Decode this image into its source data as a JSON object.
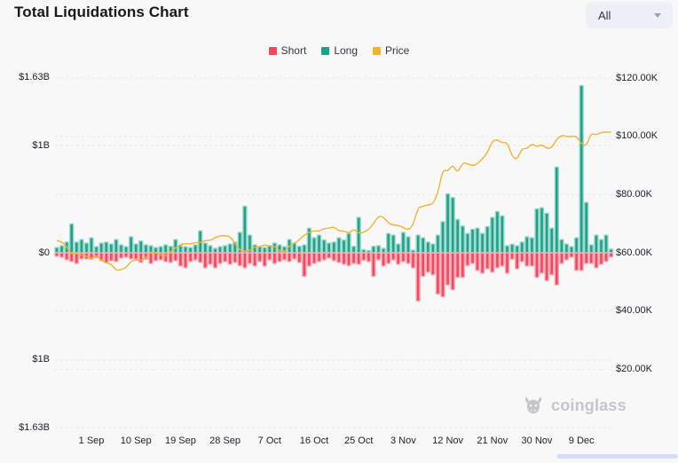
{
  "header": {
    "title": "Total Liquidations Chart"
  },
  "range_selector": {
    "value": "All"
  },
  "legend": {
    "items": [
      {
        "label": "Short",
        "color": "#f4495d"
      },
      {
        "label": "Long",
        "color": "#1aa48b"
      },
      {
        "label": "Price",
        "color": "#f0b432"
      }
    ]
  },
  "watermark": {
    "text": "coinglass"
  },
  "chart_data": {
    "type": "bar",
    "subtype": "combo-bar-line",
    "title": "Total Liquidations Chart",
    "grid": "dashed-horizontal",
    "legend_position": "top-center",
    "x": [
      "25 Aug",
      "26 Aug",
      "27 Aug",
      "28 Aug",
      "29 Aug",
      "30 Aug",
      "31 Aug",
      "1 Sep",
      "2 Sep",
      "3 Sep",
      "4 Sep",
      "5 Sep",
      "6 Sep",
      "7 Sep",
      "8 Sep",
      "9 Sep",
      "10 Sep",
      "11 Sep",
      "12 Sep",
      "13 Sep",
      "14 Sep",
      "15 Sep",
      "16 Sep",
      "17 Sep",
      "18 Sep",
      "19 Sep",
      "20 Sep",
      "21 Sep",
      "22 Sep",
      "23 Sep",
      "24 Sep",
      "25 Sep",
      "26 Sep",
      "27 Sep",
      "28 Sep",
      "29 Sep",
      "30 Sep",
      "1 Oct",
      "2 Oct",
      "3 Oct",
      "4 Oct",
      "5 Oct",
      "6 Oct",
      "7 Oct",
      "8 Oct",
      "9 Oct",
      "10 Oct",
      "11 Oct",
      "12 Oct",
      "13 Oct",
      "14 Oct",
      "15 Oct",
      "16 Oct",
      "17 Oct",
      "18 Oct",
      "19 Oct",
      "20 Oct",
      "21 Oct",
      "22 Oct",
      "23 Oct",
      "24 Oct",
      "25 Oct",
      "26 Oct",
      "27 Oct",
      "28 Oct",
      "29 Oct",
      "30 Oct",
      "31 Oct",
      "1 Nov",
      "2 Nov",
      "3 Nov",
      "4 Nov",
      "5 Nov",
      "6 Nov",
      "7 Nov",
      "8 Nov",
      "9 Nov",
      "10 Nov",
      "11 Nov",
      "12 Nov",
      "13 Nov",
      "14 Nov",
      "15 Nov",
      "16 Nov",
      "17 Nov",
      "18 Nov",
      "19 Nov",
      "20 Nov",
      "21 Nov",
      "22 Nov",
      "23 Nov",
      "24 Nov",
      "25 Nov",
      "26 Nov",
      "27 Nov",
      "28 Nov",
      "29 Nov",
      "30 Nov",
      "1 Dec",
      "2 Dec",
      "3 Dec",
      "4 Dec",
      "5 Dec",
      "6 Dec",
      "7 Dec",
      "8 Dec",
      "9 Dec",
      "10 Dec",
      "11 Dec",
      "12 Dec",
      "13 Dec",
      "14 Dec",
      "15 Dec"
    ],
    "series": [
      {
        "name": "Short",
        "type": "bar",
        "direction": "below-zero",
        "axis": "left",
        "unit": "million USD",
        "color": "#f4495d",
        "halo_color": "#f8aab6",
        "values": [
          33,
          41,
          66,
          82,
          100,
          57,
          57,
          60,
          45,
          74,
          90,
          74,
          82,
          49,
          41,
          57,
          60,
          90,
          60,
          100,
          74,
          66,
          82,
          90,
          74,
          123,
          140,
          82,
          66,
          90,
          140,
          107,
          140,
          100,
          82,
          107,
          90,
          120,
          140,
          100,
          123,
          82,
          123,
          66,
          100,
          82,
          66,
          82,
          57,
          90,
          220,
          123,
          100,
          82,
          66,
          50,
          74,
          90,
          107,
          120,
          100,
          107,
          70,
          82,
          220,
          66,
          123,
          100,
          66,
          107,
          82,
          100,
          140,
          450,
          220,
          180,
          205,
          385,
          410,
          300,
          345,
          230,
          230,
          120,
          100,
          165,
          190,
          150,
          180,
          140,
          123,
          190,
          60,
          150,
          82,
          123,
          123,
          230,
          190,
          260,
          205,
          300,
          100,
          66,
          41,
          165,
          165,
          100,
          100,
          140,
          107,
          82,
          40
        ]
      },
      {
        "name": "Long",
        "type": "bar",
        "direction": "above-zero",
        "axis": "left",
        "unit": "million USD",
        "color": "#1aa48b",
        "halo_color": "#9ed6ca",
        "values": [
          50,
          66,
          100,
          270,
          100,
          123,
          90,
          140,
          57,
          90,
          100,
          82,
          123,
          74,
          57,
          150,
          82,
          110,
          74,
          66,
          49,
          57,
          74,
          60,
          123,
          66,
          57,
          49,
          74,
          205,
          90,
          66,
          41,
          57,
          66,
          82,
          100,
          190,
          435,
          165,
          74,
          57,
          49,
          66,
          90,
          74,
          57,
          123,
          90,
          60,
          74,
          230,
          140,
          165,
          120,
          90,
          100,
          140,
          120,
          180,
          60,
          330,
          30,
          20,
          60,
          66,
          41,
          180,
          165,
          82,
          190,
          150,
          25,
          165,
          140,
          100,
          82,
          165,
          290,
          550,
          515,
          310,
          250,
          180,
          220,
          230,
          180,
          245,
          330,
          385,
          345,
          65,
          80,
          65,
          100,
          150,
          140,
          410,
          420,
          370,
          230,
          800,
          123,
          82,
          57,
          140,
          1560,
          470,
          74,
          165,
          123,
          165,
          35
        ]
      },
      {
        "name": "Price",
        "type": "line",
        "axis": "right",
        "unit": "thousand USD",
        "color": "#f0b432",
        "values": [
          64.2,
          63.8,
          62.0,
          59.5,
          59.8,
          59.2,
          58.9,
          57.8,
          59.2,
          57.4,
          56.5,
          56.2,
          53.9,
          54.2,
          54.9,
          57.1,
          57.6,
          57.3,
          58.2,
          60.5,
          60.0,
          59.2,
          58.9,
          60.3,
          61.7,
          62.9,
          63.2,
          63.0,
          63.6,
          63.4,
          64.3,
          64.2,
          65.2,
          65.8,
          65.9,
          65.6,
          63.3,
          60.8,
          60.6,
          60.7,
          62.1,
          62.0,
          62.8,
          62.2,
          62.3,
          60.6,
          60.3,
          62.4,
          63.2,
          64.5,
          66.1,
          67.0,
          67.6,
          67.4,
          68.4,
          68.4,
          69.0,
          67.4,
          67.6,
          66.6,
          68.2,
          66.6,
          67.0,
          68.0,
          69.9,
          72.7,
          72.3,
          70.2,
          69.5,
          69.4,
          68.7,
          67.8,
          69.4,
          75.6,
          75.9,
          76.5,
          76.7,
          80.4,
          88.7,
          87.9,
          90.4,
          87.3,
          91.0,
          90.6,
          89.9,
          90.5,
          92.3,
          94.3,
          98.4,
          98.9,
          97.7,
          98.0,
          93.1,
          91.9,
          95.9,
          95.7,
          97.5,
          96.4,
          97.2,
          95.8,
          96.0,
          99.0,
          100.4,
          99.9,
          99.9,
          100.1,
          97.3,
          96.6,
          101.2,
          100.4,
          101.4,
          101.4,
          101.5
        ]
      }
    ],
    "left_axis": {
      "unit": "billion USD (liquidation volume, longs up / shorts down)",
      "max_b": 1.63,
      "ticks": [
        {
          "label": "$1.63B",
          "value_b": 1.63
        },
        {
          "label": "$1B",
          "value_b": 1
        },
        {
          "label": "$0",
          "value_b": 0
        },
        {
          "label": "$1B",
          "value_b": -1
        },
        {
          "label": "$1.63B",
          "value_b": -1.63
        }
      ]
    },
    "right_axis": {
      "unit": "thousand USD (price)",
      "ticks": [
        {
          "label": "$120.00K",
          "value_k": 120
        },
        {
          "label": "$100.00K",
          "value_k": 100
        },
        {
          "label": "$80.00K",
          "value_k": 80
        },
        {
          "label": "$60.00K",
          "value_k": 60
        },
        {
          "label": "$40.00K",
          "value_k": 40
        },
        {
          "label": "$20.00K",
          "value_k": 20
        }
      ]
    },
    "x_axis": {
      "ticks": [
        {
          "label": "1 Sep",
          "index": 7
        },
        {
          "label": "10 Sep",
          "index": 16
        },
        {
          "label": "19 Sep",
          "index": 25
        },
        {
          "label": "28 Sep",
          "index": 34
        },
        {
          "label": "7 Oct",
          "index": 43
        },
        {
          "label": "16 Oct",
          "index": 52
        },
        {
          "label": "25 Oct",
          "index": 61
        },
        {
          "label": "3 Nov",
          "index": 70
        },
        {
          "label": "12 Nov",
          "index": 79
        },
        {
          "label": "21 Nov",
          "index": 88
        },
        {
          "label": "30 Nov",
          "index": 97
        },
        {
          "label": "9 Dec",
          "index": 106
        }
      ]
    }
  }
}
